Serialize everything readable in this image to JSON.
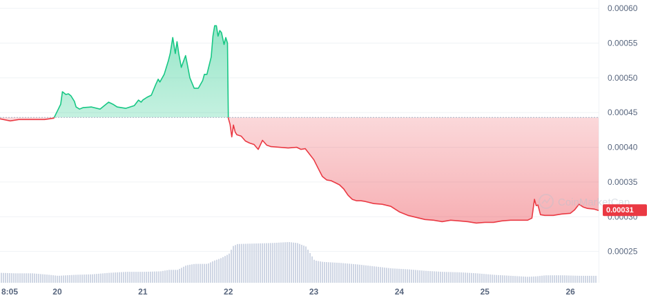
{
  "chart_data": {
    "type": "line",
    "title": "",
    "xlabel": "",
    "ylabel": "",
    "ylim": [
      0.000205,
      0.000612
    ],
    "xlim": [
      19.33,
      26.33
    ],
    "y_ticks": [
      "0.00060",
      "0.00055",
      "0.00050",
      "0.00045",
      "0.00040",
      "0.00035",
      "0.00030",
      "0.00025"
    ],
    "y_tick_values": [
      0.0006,
      0.00055,
      0.0005,
      0.00045,
      0.0004,
      0.00035,
      0.0003,
      0.00025
    ],
    "x_ticks": [
      {
        "label": "8:05",
        "value": 19.35
      },
      {
        "label": "20",
        "value": 20
      },
      {
        "label": "21",
        "value": 21
      },
      {
        "label": "22",
        "value": 22
      },
      {
        "label": "23",
        "value": 23
      },
      {
        "label": "24",
        "value": 24
      },
      {
        "label": "25",
        "value": 25
      },
      {
        "label": "26",
        "value": 26
      }
    ],
    "baseline": 0.000443,
    "current_price_label": "0.00031",
    "current_price": 0.000309,
    "watermark": "CoinMarketCap",
    "colors": {
      "up": "#16c784",
      "down": "#ea3943",
      "grid": "#eff2f5",
      "volume": "#cfd6e4",
      "baseline": "#a6b0c3"
    },
    "grid": true,
    "series": [
      {
        "x": [
          19.33,
          19.45,
          19.55,
          19.7,
          19.85,
          19.96,
          20.0,
          20.04,
          20.06,
          20.08,
          20.1,
          20.13,
          20.16,
          20.2,
          20.22,
          20.26,
          20.3,
          20.4,
          20.5,
          20.6,
          20.65,
          20.7,
          20.8,
          20.9,
          20.95,
          20.98,
          21.0,
          21.05,
          21.1,
          21.15,
          21.18,
          21.2,
          21.25,
          21.3,
          21.32,
          21.35,
          21.38,
          21.4,
          21.42,
          21.45,
          21.47,
          21.5,
          21.52,
          21.55,
          21.6,
          21.65,
          21.7,
          21.72,
          21.75,
          21.8,
          21.82,
          21.84,
          21.86,
          21.88,
          21.9,
          21.92,
          21.95,
          21.97,
          21.99,
          22.0,
          22.02,
          22.04,
          22.06,
          22.08,
          22.1,
          22.15,
          22.2,
          22.25,
          22.3,
          22.35,
          22.38,
          22.4,
          22.45,
          22.5,
          22.6,
          22.7,
          22.8,
          22.85,
          22.9,
          22.95,
          23.0,
          23.05,
          23.1,
          23.15,
          23.2,
          23.25,
          23.3,
          23.35,
          23.4,
          23.45,
          23.5,
          23.55,
          23.6,
          23.7,
          23.8,
          23.9,
          24.0,
          24.1,
          24.2,
          24.3,
          24.4,
          24.5,
          24.6,
          24.7,
          24.8,
          24.9,
          25.0,
          25.1,
          25.2,
          25.3,
          25.4,
          25.5,
          25.55,
          25.58,
          25.6,
          25.62,
          25.65,
          25.7,
          25.8,
          25.9,
          26.0,
          26.05,
          26.1,
          26.15,
          26.2,
          26.28,
          26.33
        ],
        "y": [
          0.000441,
          0.000438,
          0.00044,
          0.00044,
          0.00044,
          0.000442,
          0.000452,
          0.000462,
          0.00048,
          0.000478,
          0.000476,
          0.000477,
          0.000474,
          0.000466,
          0.000458,
          0.000455,
          0.000457,
          0.000458,
          0.000455,
          0.000465,
          0.000462,
          0.000458,
          0.000456,
          0.00046,
          0.000468,
          0.000465,
          0.000468,
          0.000472,
          0.000475,
          0.00049,
          0.000498,
          0.000494,
          0.000505,
          0.000525,
          0.000535,
          0.000558,
          0.000535,
          0.000552,
          0.000535,
          0.000515,
          0.000522,
          0.000532,
          0.00052,
          0.0005,
          0.000485,
          0.000485,
          0.000496,
          0.000505,
          0.000505,
          0.00053,
          0.00056,
          0.000575,
          0.000575,
          0.00056,
          0.000568,
          0.000565,
          0.000548,
          0.000558,
          0.00055,
          0.000442,
          0.000433,
          0.000415,
          0.000432,
          0.000422,
          0.000418,
          0.000416,
          0.000409,
          0.000406,
          0.000404,
          0.000397,
          0.000405,
          0.00041,
          0.000403,
          0.000401,
          0.0004,
          0.000399,
          0.0004,
          0.000397,
          0.000398,
          0.00039,
          0.000382,
          0.00037,
          0.000358,
          0.000353,
          0.000352,
          0.000349,
          0.000346,
          0.00034,
          0.000331,
          0.000325,
          0.000323,
          0.000323,
          0.000322,
          0.000319,
          0.000318,
          0.000315,
          0.000307,
          0.000302,
          0.000299,
          0.000296,
          0.000295,
          0.000293,
          0.000295,
          0.000294,
          0.000293,
          0.000291,
          0.000292,
          0.000292,
          0.000294,
          0.000295,
          0.000295,
          0.000295,
          0.000298,
          0.000325,
          0.000316,
          0.000317,
          0.000303,
          0.000302,
          0.000302,
          0.000304,
          0.000305,
          0.00031,
          0.000318,
          0.000314,
          0.000312,
          0.000311,
          0.000309
        ]
      }
    ],
    "volume": [
      [
        19.33,
        0.2
      ],
      [
        19.5,
        0.19
      ],
      [
        19.7,
        0.19
      ],
      [
        19.9,
        0.16
      ],
      [
        20.0,
        0.14
      ],
      [
        20.2,
        0.16
      ],
      [
        20.4,
        0.17
      ],
      [
        20.6,
        0.2
      ],
      [
        20.8,
        0.22
      ],
      [
        21.0,
        0.22
      ],
      [
        21.2,
        0.23
      ],
      [
        21.3,
        0.26
      ],
      [
        21.4,
        0.26
      ],
      [
        21.5,
        0.35
      ],
      [
        21.6,
        0.38
      ],
      [
        21.75,
        0.38
      ],
      [
        21.82,
        0.44
      ],
      [
        21.9,
        0.49
      ],
      [
        22.0,
        0.58
      ],
      [
        22.05,
        0.74
      ],
      [
        22.1,
        0.78
      ],
      [
        22.3,
        0.79
      ],
      [
        22.5,
        0.8
      ],
      [
        22.7,
        0.82
      ],
      [
        22.8,
        0.8
      ],
      [
        22.9,
        0.73
      ],
      [
        23.0,
        0.45
      ],
      [
        23.1,
        0.42
      ],
      [
        23.3,
        0.4
      ],
      [
        23.5,
        0.37
      ],
      [
        23.7,
        0.33
      ],
      [
        23.9,
        0.29
      ],
      [
        24.1,
        0.27
      ],
      [
        24.3,
        0.24
      ],
      [
        24.5,
        0.22
      ],
      [
        24.7,
        0.21
      ],
      [
        24.9,
        0.19
      ],
      [
        25.1,
        0.16
      ],
      [
        25.3,
        0.14
      ],
      [
        25.5,
        0.12
      ],
      [
        25.6,
        0.13
      ],
      [
        25.7,
        0.15
      ],
      [
        25.9,
        0.15
      ],
      [
        26.1,
        0.14
      ],
      [
        26.33,
        0.14
      ]
    ]
  }
}
